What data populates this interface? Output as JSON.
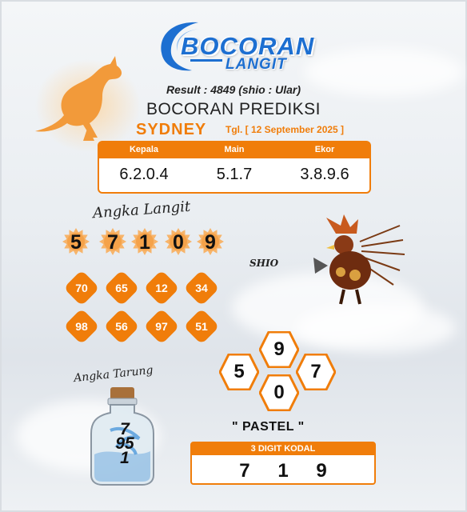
{
  "header": {
    "logo_line1": "BOCORAN",
    "logo_line2": "LANGIT",
    "result": "Result : 4849 (shio : Ular)",
    "title": "BOCORAN PREDIKSI",
    "market": "SYDNEY",
    "date": "Tgl. [ 12 September 2025 ]"
  },
  "prediction": {
    "columns": [
      {
        "label": "Kepala",
        "value": "6.2.0.4"
      },
      {
        "label": "Main",
        "value": "5.1.7"
      },
      {
        "label": "Ekor",
        "value": "3.8.9.6"
      }
    ]
  },
  "angka_langit": {
    "label": "Angka Langit",
    "digits": [
      "5",
      "7",
      "1",
      "0",
      "9"
    ],
    "pairs": [
      "70",
      "65",
      "12",
      "34",
      "98",
      "56",
      "97",
      "51"
    ]
  },
  "shio": {
    "label": "SHIO",
    "icon": "rooster-warrior-icon"
  },
  "hexagons": [
    "9",
    "5",
    "7",
    "0"
  ],
  "angka_tarung": {
    "label": "Angka Tarung",
    "numbers": [
      "7",
      "95",
      "1"
    ]
  },
  "pastel": "\" PASTEL \"",
  "kodal": {
    "label": "3 DIGIT KODAL",
    "value": "7 1 9"
  },
  "colors": {
    "accent": "#f07d0a",
    "logo_blue": "#1d6fd1"
  }
}
